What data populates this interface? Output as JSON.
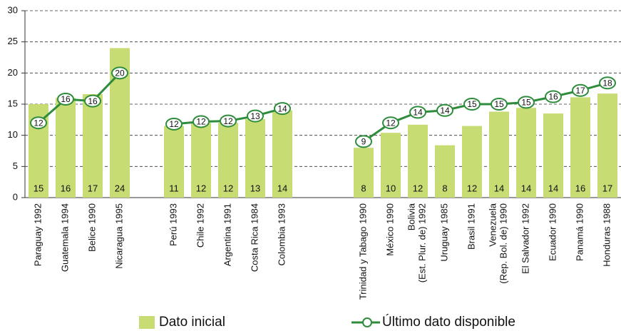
{
  "chart_data": {
    "type": "bar",
    "categories": [
      "Paraguay 1992",
      "Guatemala 1994",
      "Belice 1990",
      "Nicaragua 1995",
      null,
      "Perú 1993",
      "Chile 1992",
      "Argentina 1991",
      "Costa Rica 1984",
      "Colombia 1993",
      null,
      null,
      "Trinidad y Tabago 1990",
      "México 1990",
      "Bolivia\n(Est. Plur. de) 1992",
      "Uruguay 1985",
      "Brasil 1991",
      "Venezuela\n(Rep. Bol. de) 1990",
      "El Salvador 1992",
      "Ecuador 1990",
      "Panamá 1990",
      "Honduras 1988"
    ],
    "series": [
      {
        "name": "Dato inicial",
        "type": "bar",
        "color": "#c8dc74",
        "values": [
          15,
          16,
          16.6,
          24,
          null,
          11.5,
          12,
          12,
          12.6,
          14,
          null,
          null,
          8,
          10.4,
          11.7,
          8.4,
          11.5,
          13.8,
          14.4,
          13.5,
          16.1,
          16.7
        ],
        "value_labels": [
          "15",
          "16",
          "17",
          "24",
          null,
          "11",
          "12",
          "12",
          "13",
          "14",
          null,
          null,
          "8",
          "10",
          "12",
          "8",
          "12",
          "14",
          "14",
          "14",
          "16",
          "17"
        ]
      },
      {
        "name": "Último dato disponible",
        "type": "line",
        "color": "#2f8c3c",
        "values": [
          12,
          15.8,
          15.5,
          20,
          null,
          11.8,
          12.2,
          12.3,
          13.1,
          14.3,
          null,
          null,
          9,
          12,
          13.7,
          14,
          15,
          15,
          15.3,
          16.2,
          17.2,
          18.4
        ],
        "value_labels": [
          "12",
          "16",
          "16",
          "20",
          null,
          "12",
          "12",
          "12",
          "13",
          "14",
          null,
          null,
          "9",
          "12",
          "14",
          "14",
          "15",
          "15",
          "15",
          "16",
          "17",
          "18"
        ]
      }
    ],
    "ylim": [
      0,
      30
    ],
    "yticks": [
      0,
      5,
      10,
      15,
      20,
      25,
      30
    ],
    "grid": true
  }
}
